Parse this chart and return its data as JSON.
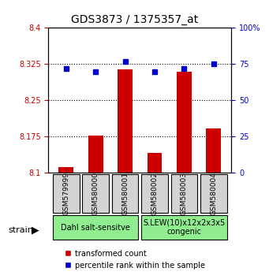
{
  "title": "GDS3873 / 1375357_at",
  "samples": [
    "GSM579999",
    "GSM580000",
    "GSM580001",
    "GSM580002",
    "GSM580003",
    "GSM580004"
  ],
  "bar_values": [
    8.112,
    8.178,
    8.315,
    8.142,
    8.31,
    8.192
  ],
  "dot_values": [
    72,
    70,
    77,
    70,
    72,
    75
  ],
  "bar_color": "#cc0000",
  "dot_color": "#0000cc",
  "ylim_left": [
    8.1,
    8.4
  ],
  "ylim_right": [
    0,
    100
  ],
  "yticks_left": [
    8.1,
    8.175,
    8.25,
    8.325,
    8.4
  ],
  "yticks_right": [
    0,
    25,
    50,
    75,
    100
  ],
  "ytick_labels_left": [
    "8.1",
    "8.175",
    "8.25",
    "8.325",
    "8.4"
  ],
  "ytick_labels_right": [
    "0",
    "25",
    "50",
    "75",
    "100%"
  ],
  "hlines": [
    8.175,
    8.25,
    8.325
  ],
  "groups": [
    {
      "label": "Dahl salt-sensitve",
      "indices": [
        0,
        1,
        2
      ],
      "color": "#90ee90"
    },
    {
      "label": "S.LEW(10)x12x2x3x5\ncongenic",
      "indices": [
        3,
        4,
        5
      ],
      "color": "#90ee90"
    }
  ],
  "legend_bar_label": "transformed count",
  "legend_dot_label": "percentile rank within the sample",
  "strain_label": "strain",
  "background_color": "#ffffff",
  "plot_bg_color": "#ffffff",
  "sample_box_color": "#d3d3d3"
}
